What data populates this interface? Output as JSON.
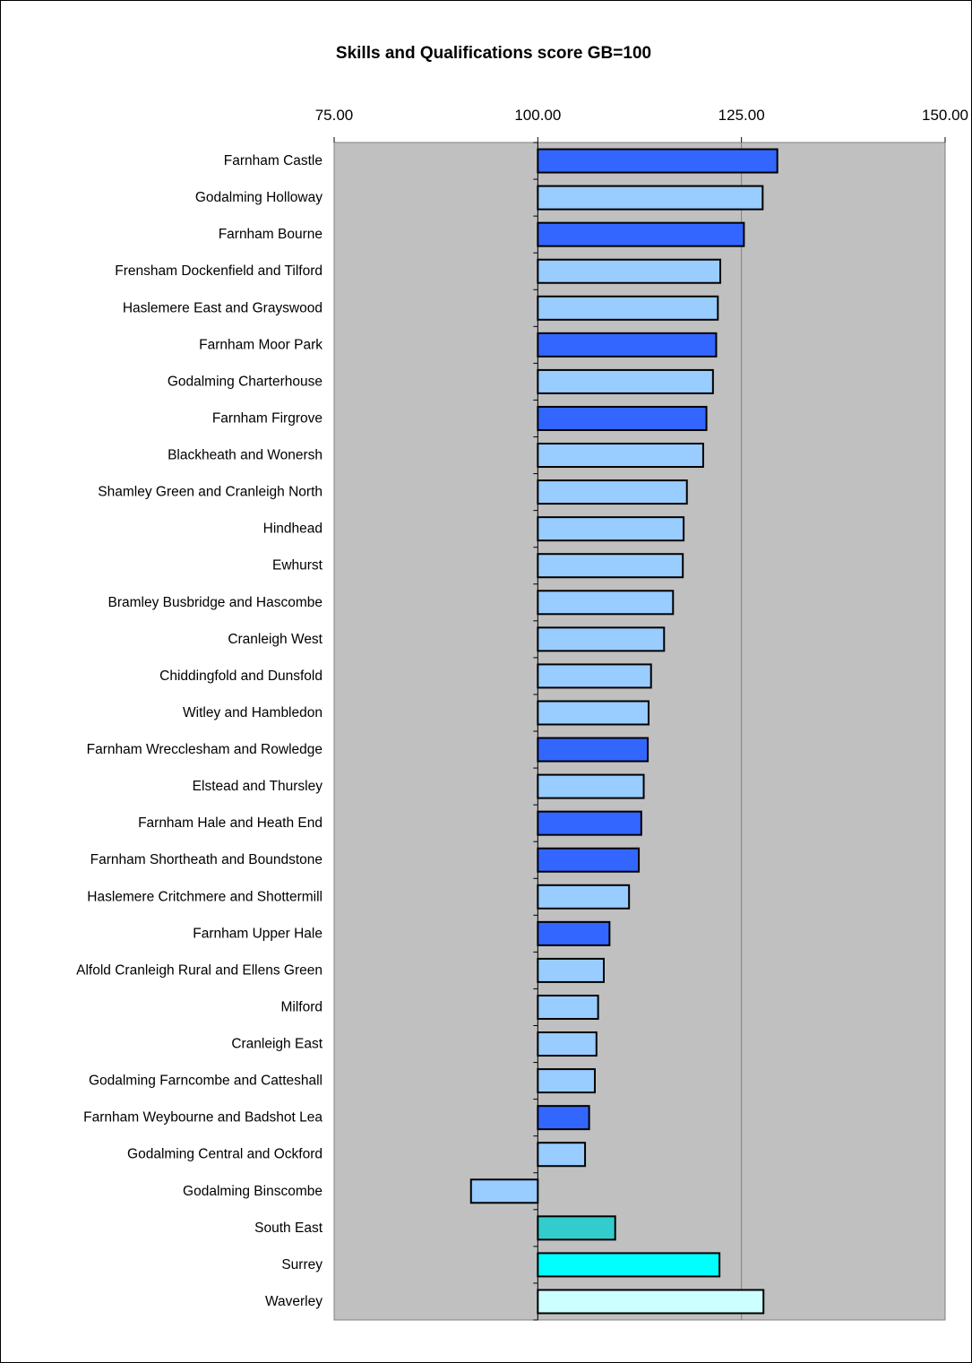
{
  "chart_data": {
    "type": "bar",
    "orientation": "horizontal",
    "title": "Skills and Qualifications score GB=100",
    "xlabel": "",
    "ylabel": "",
    "xlim": [
      75,
      150
    ],
    "x_ticks": [
      75,
      100,
      125,
      150
    ],
    "x_tick_labels": [
      "75.00",
      "100.00",
      "125.00",
      "150.00"
    ],
    "x_tick_position": "top",
    "baseline": 100,
    "grid": "vertical gridlines at 100 and 125",
    "legend": "none",
    "plot_background": "#c0c0c0",
    "categories": [
      "Farnham Castle",
      "Godalming Holloway",
      "Farnham Bourne",
      "Frensham Dockenfield and Tilford",
      "Haslemere East and Grayswood",
      "Farnham Moor Park",
      "Godalming Charterhouse",
      "Farnham Firgrove",
      "Blackheath and Wonersh",
      "Shamley Green and Cranleigh North",
      "Hindhead",
      "Ewhurst",
      "Bramley Busbridge and Hascombe",
      "Cranleigh West",
      "Chiddingfold and Dunsfold",
      "Witley and Hambledon",
      "Farnham Wrecclesham and Rowledge",
      "Elstead and Thursley",
      "Farnham Hale and Heath End",
      "Farnham Shortheath and Boundstone",
      "Haslemere Critchmere and Shottermill",
      "Farnham Upper Hale",
      "Alfold Cranleigh Rural and Ellens Green",
      "Milford",
      "Cranleigh East",
      "Godalming Farncombe and Catteshall",
      "Farnham Weybourne and Badshot Lea",
      "Godalming Central and Ockford",
      "Godalming Binscombe",
      "South East",
      "Surrey",
      "Waverley"
    ],
    "values": [
      129.4,
      127.6,
      125.3,
      122.4,
      122.1,
      121.9,
      121.5,
      120.7,
      120.3,
      118.3,
      117.9,
      117.8,
      116.6,
      115.5,
      113.9,
      113.6,
      113.5,
      113.0,
      112.7,
      112.4,
      111.2,
      108.8,
      108.1,
      107.4,
      107.2,
      107.0,
      106.3,
      105.8,
      91.8,
      109.5,
      122.3,
      127.7
    ],
    "bar_colors": [
      "#3366ff",
      "#99ccff",
      "#3366ff",
      "#99ccff",
      "#99ccff",
      "#3366ff",
      "#99ccff",
      "#3366ff",
      "#99ccff",
      "#99ccff",
      "#99ccff",
      "#99ccff",
      "#99ccff",
      "#99ccff",
      "#99ccff",
      "#99ccff",
      "#3366ff",
      "#99ccff",
      "#3366ff",
      "#3366ff",
      "#99ccff",
      "#3366ff",
      "#99ccff",
      "#99ccff",
      "#99ccff",
      "#99ccff",
      "#3366ff",
      "#99ccff",
      "#99ccff",
      "#33cccc",
      "#00ffff",
      "#ccffff"
    ]
  }
}
